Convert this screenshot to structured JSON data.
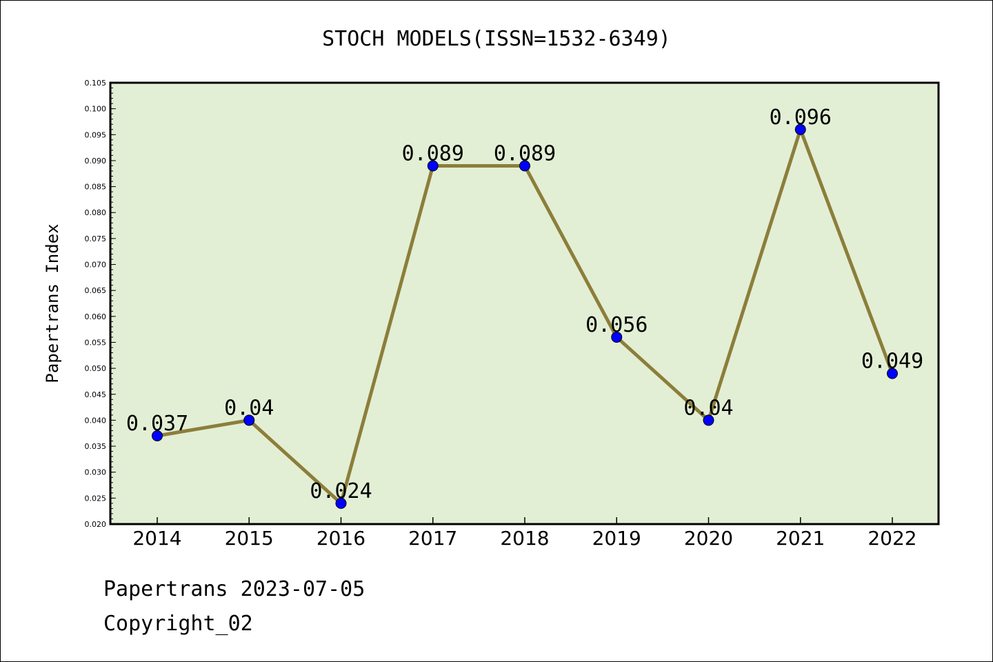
{
  "chart_data": {
    "type": "line",
    "title": "STOCH MODELS(ISSN=1532-6349)",
    "xlabel": "",
    "ylabel": "Papertrans Index",
    "categories": [
      "2014",
      "2015",
      "2016",
      "2017",
      "2018",
      "2019",
      "2020",
      "2021",
      "2022"
    ],
    "series": [
      {
        "values": [
          0.037,
          0.04,
          0.024,
          0.089,
          0.089,
          0.056,
          0.04,
          0.096,
          0.049
        ],
        "data_labels": [
          "0.037",
          "0.04",
          "0.024",
          "0.089",
          "0.089",
          "0.056",
          "0.04",
          "0.096",
          "0.049"
        ]
      }
    ],
    "ylim": [
      0.02,
      0.105
    ],
    "yticks": [
      "0.020",
      "0.025",
      "0.030",
      "0.035",
      "0.040",
      "0.045",
      "0.050",
      "0.055",
      "0.060",
      "0.065",
      "0.070",
      "0.075",
      "0.080",
      "0.085",
      "0.090",
      "0.095",
      "0.100",
      "0.105"
    ],
    "grid": false,
    "legend": "none"
  },
  "colors": {
    "plot_background": "#e2efd5",
    "line": "#8c7e3a",
    "marker": "#0000ff"
  },
  "footer": {
    "line1": "Papertrans 2023-07-05",
    "line2": "Copyright_02"
  }
}
